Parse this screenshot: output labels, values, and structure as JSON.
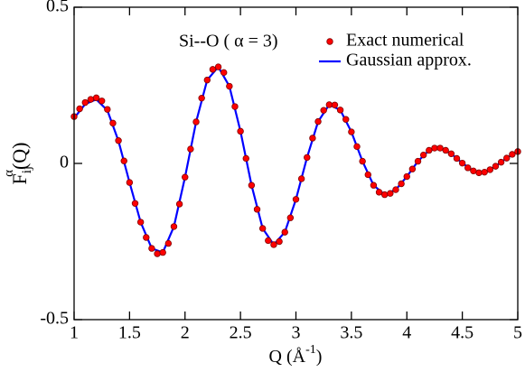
{
  "chart_data": {
    "type": "scatter_line",
    "annotation": "Si--O ( α = 3)",
    "x_label": {
      "main": "Q (Å",
      "sup": "-1",
      "end": ")"
    },
    "y_label": {
      "main": "F",
      "sub": "ij",
      "sup": "α",
      "end": "(Q)"
    },
    "xlim": [
      1,
      5
    ],
    "ylim": [
      -0.5,
      0.5
    ],
    "xticks": [
      1,
      1.5,
      2,
      2.5,
      3,
      3.5,
      4,
      4.5,
      5
    ],
    "yticks": [
      -0.5,
      0,
      0.5
    ],
    "legend": "upper right",
    "series": [
      {
        "name": "Exact numerical",
        "kind": "scatter",
        "color": "#ff0000",
        "x": [
          1.0,
          1.05,
          1.1,
          1.15,
          1.2,
          1.25,
          1.3,
          1.35,
          1.4,
          1.45,
          1.5,
          1.55,
          1.6,
          1.65,
          1.7,
          1.75,
          1.8,
          1.85,
          1.9,
          1.95,
          2.0,
          2.05,
          2.1,
          2.15,
          2.2,
          2.25,
          2.3,
          2.35,
          2.4,
          2.45,
          2.5,
          2.55,
          2.6,
          2.65,
          2.7,
          2.75,
          2.8,
          2.85,
          2.9,
          2.95,
          3.0,
          3.05,
          3.1,
          3.15,
          3.2,
          3.25,
          3.3,
          3.35,
          3.4,
          3.45,
          3.5,
          3.55,
          3.6,
          3.65,
          3.7,
          3.75,
          3.8,
          3.85,
          3.9,
          3.95,
          4.0,
          4.05,
          4.1,
          4.15,
          4.2,
          4.25,
          4.3,
          4.35,
          4.4,
          4.45,
          4.5,
          4.55,
          4.6,
          4.65,
          4.7,
          4.75,
          4.8,
          4.85,
          4.9,
          4.95,
          5.0
        ],
        "values": [
          0.15,
          0.175,
          0.195,
          0.205,
          0.21,
          0.2,
          0.173,
          0.129,
          0.073,
          0.008,
          -0.061,
          -0.128,
          -0.188,
          -0.237,
          -0.272,
          -0.289,
          -0.285,
          -0.256,
          -0.202,
          -0.13,
          -0.044,
          0.046,
          0.133,
          0.209,
          0.267,
          0.301,
          0.309,
          0.291,
          0.247,
          0.182,
          0.103,
          0.016,
          -0.07,
          -0.147,
          -0.208,
          -0.247,
          -0.26,
          -0.25,
          -0.22,
          -0.174,
          -0.115,
          -0.049,
          0.019,
          0.081,
          0.134,
          0.17,
          0.188,
          0.187,
          0.171,
          0.141,
          0.101,
          0.054,
          0.007,
          -0.036,
          -0.07,
          -0.092,
          -0.1,
          -0.096,
          -0.084,
          -0.065,
          -0.042,
          -0.018,
          0.007,
          0.027,
          0.042,
          0.049,
          0.049,
          0.042,
          0.031,
          0.016,
          0.001,
          -0.014,
          -0.024,
          -0.03,
          -0.028,
          -0.02,
          -0.009,
          0.004,
          0.017,
          0.029,
          0.038
        ]
      },
      {
        "name": "Gaussian approx.",
        "kind": "line",
        "color": "#0000ff",
        "x": [
          1.0,
          1.1,
          1.2,
          1.3,
          1.4,
          1.5,
          1.6,
          1.7,
          1.8,
          1.9,
          2.0,
          2.1,
          2.2,
          2.3,
          2.4,
          2.5,
          2.6,
          2.7,
          2.8,
          2.9,
          3.0,
          3.1,
          3.2,
          3.3,
          3.4,
          3.5,
          3.6,
          3.7,
          3.8,
          3.9,
          4.0,
          4.1,
          4.2,
          4.3,
          4.4,
          4.5,
          4.6,
          4.7,
          4.8,
          4.9,
          5.0
        ],
        "values": [
          0.145,
          0.19,
          0.205,
          0.17,
          0.072,
          -0.061,
          -0.188,
          -0.272,
          -0.285,
          -0.202,
          -0.044,
          0.133,
          0.267,
          0.309,
          0.247,
          0.103,
          -0.07,
          -0.208,
          -0.26,
          -0.22,
          -0.115,
          0.019,
          0.134,
          0.188,
          0.171,
          0.101,
          0.007,
          -0.07,
          -0.1,
          -0.084,
          -0.042,
          0.007,
          0.042,
          0.049,
          0.031,
          0.001,
          -0.024,
          -0.028,
          -0.009,
          0.017,
          0.038
        ]
      }
    ]
  }
}
